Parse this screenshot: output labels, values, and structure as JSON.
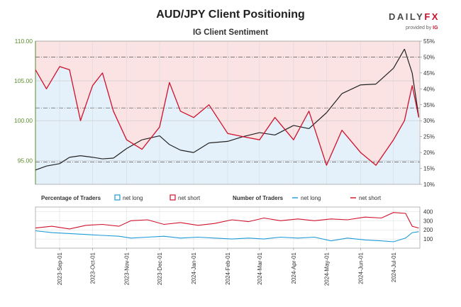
{
  "header": {
    "title": "AUD/JPY Client Positioning",
    "subtitle": "IG Client Sentiment",
    "logo_main": "DAILY",
    "logo_x": "FX",
    "logo_sub": "provided by",
    "logo_ig": "IG"
  },
  "colors": {
    "price": "#222222",
    "net_long": "#1e9bd7",
    "net_short": "#d0112b",
    "short_zone": "#fbe3e3",
    "long_zone": "#e4f1fb",
    "axis_green": "#5a8a2a"
  },
  "chart_data": [
    {
      "type": "line",
      "name": "price-and-sentiment",
      "title": "IG Client Sentiment",
      "left_axis": {
        "ticks": [
          "110.00",
          "105.00",
          "100.00",
          "95.00"
        ],
        "values": [
          110,
          105,
          100,
          95
        ],
        "ylim": [
          92,
          110
        ]
      },
      "right_axis": {
        "ticks": [
          "55%",
          "50%",
          "45%",
          "40%",
          "35%",
          "30%",
          "25%",
          "20%",
          "15%",
          "10%"
        ],
        "values": [
          55,
          50,
          45,
          40,
          35,
          30,
          25,
          20,
          15,
          10
        ],
        "ylim": [
          10,
          55
        ]
      },
      "price_series": [
        {
          "date": "2023-08-10",
          "price": 93.8
        },
        {
          "date": "2023-08-20",
          "price": 94.3
        },
        {
          "date": "2023-09-01",
          "price": 94.6
        },
        {
          "date": "2023-09-10",
          "price": 95.4
        },
        {
          "date": "2023-09-20",
          "price": 95.6
        },
        {
          "date": "2023-10-01",
          "price": 95.4
        },
        {
          "date": "2023-10-10",
          "price": 95.2
        },
        {
          "date": "2023-10-20",
          "price": 95.3
        },
        {
          "date": "2023-11-01",
          "price": 96.5
        },
        {
          "date": "2023-11-15",
          "price": 97.6
        },
        {
          "date": "2023-12-01",
          "price": 98.1
        },
        {
          "date": "2023-12-10",
          "price": 97.0
        },
        {
          "date": "2023-12-20",
          "price": 96.3
        },
        {
          "date": "2024-01-01",
          "price": 96.0
        },
        {
          "date": "2024-01-15",
          "price": 97.2
        },
        {
          "date": "2024-02-01",
          "price": 97.4
        },
        {
          "date": "2024-02-15",
          "price": 98.0
        },
        {
          "date": "2024-03-01",
          "price": 98.5
        },
        {
          "date": "2024-03-15",
          "price": 98.2
        },
        {
          "date": "2024-04-01",
          "price": 99.4
        },
        {
          "date": "2024-04-15",
          "price": 99.0
        },
        {
          "date": "2024-05-01",
          "price": 101.0
        },
        {
          "date": "2024-05-15",
          "price": 103.4
        },
        {
          "date": "2024-06-01",
          "price": 104.5
        },
        {
          "date": "2024-06-15",
          "price": 104.6
        },
        {
          "date": "2024-07-01",
          "price": 106.6
        },
        {
          "date": "2024-07-11",
          "price": 109.0
        },
        {
          "date": "2024-07-18",
          "price": 106.0
        },
        {
          "date": "2024-07-24",
          "price": 100.5
        }
      ],
      "net_short_pct": [
        {
          "date": "2023-08-10",
          "pct": 46
        },
        {
          "date": "2023-08-20",
          "pct": 40
        },
        {
          "date": "2023-09-01",
          "pct": 47
        },
        {
          "date": "2023-09-10",
          "pct": 46
        },
        {
          "date": "2023-09-20",
          "pct": 30
        },
        {
          "date": "2023-10-01",
          "pct": 41
        },
        {
          "date": "2023-10-10",
          "pct": 45
        },
        {
          "date": "2023-10-20",
          "pct": 33
        },
        {
          "date": "2023-11-01",
          "pct": 24
        },
        {
          "date": "2023-11-15",
          "pct": 21
        },
        {
          "date": "2023-12-01",
          "pct": 28
        },
        {
          "date": "2023-12-10",
          "pct": 42
        },
        {
          "date": "2023-12-20",
          "pct": 33
        },
        {
          "date": "2024-01-01",
          "pct": 31
        },
        {
          "date": "2024-01-15",
          "pct": 35
        },
        {
          "date": "2024-02-01",
          "pct": 26
        },
        {
          "date": "2024-02-15",
          "pct": 25
        },
        {
          "date": "2024-03-01",
          "pct": 24
        },
        {
          "date": "2024-03-15",
          "pct": 31
        },
        {
          "date": "2024-04-01",
          "pct": 24
        },
        {
          "date": "2024-04-15",
          "pct": 33
        },
        {
          "date": "2024-05-01",
          "pct": 16
        },
        {
          "date": "2024-05-15",
          "pct": 27
        },
        {
          "date": "2024-06-01",
          "pct": 20
        },
        {
          "date": "2024-06-15",
          "pct": 16
        },
        {
          "date": "2024-07-01",
          "pct": 24
        },
        {
          "date": "2024-07-11",
          "pct": 30
        },
        {
          "date": "2024-07-18",
          "pct": 41
        },
        {
          "date": "2024-07-24",
          "pct": 31
        }
      ],
      "reference_lines": [
        {
          "pct": 50
        },
        {
          "pct": 34
        },
        {
          "pct": 17
        }
      ]
    },
    {
      "type": "line",
      "name": "positioning",
      "legend": {
        "pct_label": "Percentage of Traders",
        "pct_long": "net long",
        "pct_short": "net short",
        "num_label": "Number of Traders",
        "num_long": "net long",
        "num_short": "net short"
      },
      "y_axis": {
        "ticks": [
          "400",
          "300",
          "200",
          "100"
        ],
        "values": [
          400,
          300,
          200,
          100
        ],
        "ylim": [
          0,
          450
        ]
      },
      "x_ticks": [
        "2023-Sep-01",
        "2023-Oct-01",
        "2023-Nov-01",
        "2023-Dec-01",
        "2024-Jan-01",
        "2024-Feb-01",
        "2024-Mar-01",
        "2024-Apr-01",
        "2024-May-01",
        "2024-Jun-01",
        "2024-Jul-01"
      ],
      "x_tick_dates": [
        "2023-09-01",
        "2023-10-01",
        "2023-11-01",
        "2023-12-01",
        "2024-01-01",
        "2024-02-01",
        "2024-03-01",
        "2024-04-01",
        "2024-05-01",
        "2024-06-01",
        "2024-07-01"
      ],
      "net_short_count": [
        {
          "date": "2023-08-10",
          "n": 220
        },
        {
          "date": "2023-08-25",
          "n": 240
        },
        {
          "date": "2023-09-10",
          "n": 210
        },
        {
          "date": "2023-09-25",
          "n": 250
        },
        {
          "date": "2023-10-10",
          "n": 260
        },
        {
          "date": "2023-10-25",
          "n": 240
        },
        {
          "date": "2023-11-05",
          "n": 300
        },
        {
          "date": "2023-11-20",
          "n": 310
        },
        {
          "date": "2023-12-05",
          "n": 260
        },
        {
          "date": "2023-12-20",
          "n": 280
        },
        {
          "date": "2024-01-05",
          "n": 250
        },
        {
          "date": "2024-01-20",
          "n": 270
        },
        {
          "date": "2024-02-05",
          "n": 310
        },
        {
          "date": "2024-02-20",
          "n": 290
        },
        {
          "date": "2024-03-05",
          "n": 330
        },
        {
          "date": "2024-03-20",
          "n": 300
        },
        {
          "date": "2024-04-05",
          "n": 320
        },
        {
          "date": "2024-04-20",
          "n": 300
        },
        {
          "date": "2024-05-05",
          "n": 320
        },
        {
          "date": "2024-05-20",
          "n": 310
        },
        {
          "date": "2024-06-05",
          "n": 340
        },
        {
          "date": "2024-06-20",
          "n": 330
        },
        {
          "date": "2024-07-01",
          "n": 390
        },
        {
          "date": "2024-07-12",
          "n": 380
        },
        {
          "date": "2024-07-18",
          "n": 240
        },
        {
          "date": "2024-07-24",
          "n": 220
        }
      ],
      "net_long_count": [
        {
          "date": "2023-08-10",
          "n": 190
        },
        {
          "date": "2023-08-25",
          "n": 170
        },
        {
          "date": "2023-09-10",
          "n": 160
        },
        {
          "date": "2023-09-25",
          "n": 150
        },
        {
          "date": "2023-10-10",
          "n": 140
        },
        {
          "date": "2023-10-25",
          "n": 130
        },
        {
          "date": "2023-11-05",
          "n": 110
        },
        {
          "date": "2023-11-20",
          "n": 120
        },
        {
          "date": "2023-12-05",
          "n": 130
        },
        {
          "date": "2023-12-20",
          "n": 110
        },
        {
          "date": "2024-01-05",
          "n": 120
        },
        {
          "date": "2024-01-20",
          "n": 110
        },
        {
          "date": "2024-02-05",
          "n": 100
        },
        {
          "date": "2024-02-20",
          "n": 110
        },
        {
          "date": "2024-03-05",
          "n": 100
        },
        {
          "date": "2024-03-20",
          "n": 120
        },
        {
          "date": "2024-04-05",
          "n": 110
        },
        {
          "date": "2024-04-20",
          "n": 120
        },
        {
          "date": "2024-05-05",
          "n": 80
        },
        {
          "date": "2024-05-20",
          "n": 110
        },
        {
          "date": "2024-06-05",
          "n": 90
        },
        {
          "date": "2024-06-20",
          "n": 80
        },
        {
          "date": "2024-07-01",
          "n": 70
        },
        {
          "date": "2024-07-12",
          "n": 110
        },
        {
          "date": "2024-07-18",
          "n": 170
        },
        {
          "date": "2024-07-24",
          "n": 180
        }
      ]
    }
  ]
}
